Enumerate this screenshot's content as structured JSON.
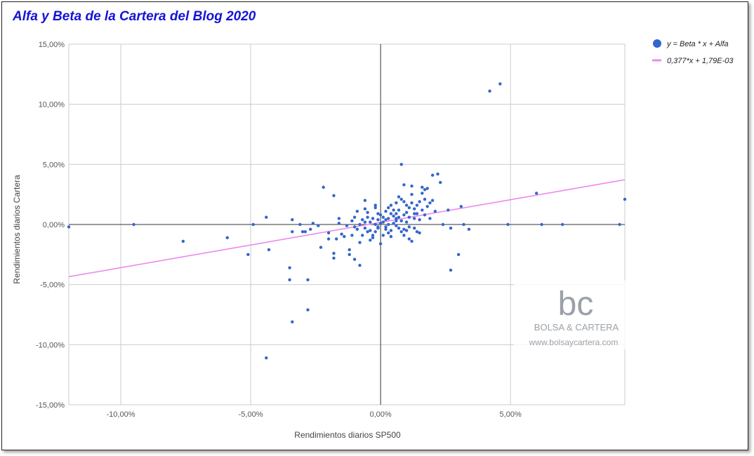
{
  "chart_data": {
    "type": "scatter",
    "title": "Alfa y Beta de la Cartera del Blog 2020",
    "xlabel": "Rendimientos diarios SP500",
    "ylabel": "Rendimientos diarios Cartera",
    "xlim": [
      -12.0,
      9.4
    ],
    "ylim": [
      -15.0,
      15.0
    ],
    "x_ticks": [
      {
        "value": -10,
        "label": "-10,00%"
      },
      {
        "value": -5,
        "label": "-5,00%"
      },
      {
        "value": 0,
        "label": "0,00%"
      },
      {
        "value": 5,
        "label": "5,00%"
      }
    ],
    "y_ticks": [
      {
        "value": 15,
        "label": "15,00%"
      },
      {
        "value": 10,
        "label": "10,00%"
      },
      {
        "value": 5,
        "label": "5,00%"
      },
      {
        "value": 0,
        "label": "0,00%"
      },
      {
        "value": -5,
        "label": "-5,00%"
      },
      {
        "value": -10,
        "label": "-10,00%"
      },
      {
        "value": -15,
        "label": "-15,00%"
      }
    ],
    "grid": true,
    "legend_position": "right",
    "series": [
      {
        "name": "y = Beta * x + Alfa",
        "kind": "scatter",
        "color": "#3366cc",
        "points": [
          [
            -12.0,
            -0.2
          ],
          [
            -9.5,
            0.0
          ],
          [
            -7.6,
            -1.4
          ],
          [
            -5.9,
            -1.1
          ],
          [
            -4.9,
            0.0
          ],
          [
            -5.1,
            -2.5
          ],
          [
            -4.4,
            0.6
          ],
          [
            -4.3,
            -2.1
          ],
          [
            -3.5,
            -3.6
          ],
          [
            -3.4,
            0.4
          ],
          [
            -3.5,
            -4.6
          ],
          [
            -3.4,
            -8.1
          ],
          [
            -4.4,
            -11.1
          ],
          [
            -2.8,
            -4.6
          ],
          [
            -2.8,
            -7.1
          ],
          [
            -3.0,
            -0.6
          ],
          [
            -2.9,
            -0.6
          ],
          [
            -2.7,
            -0.4
          ],
          [
            -3.1,
            0.0
          ],
          [
            -3.4,
            -0.6
          ],
          [
            -2.6,
            0.1
          ],
          [
            -2.4,
            -0.1
          ],
          [
            -2.3,
            -1.9
          ],
          [
            -2.2,
            3.1
          ],
          [
            -1.8,
            2.4
          ],
          [
            -2.0,
            -0.7
          ],
          [
            -1.8,
            -2.4
          ],
          [
            -1.7,
            -1.2
          ],
          [
            -1.6,
            0.1
          ],
          [
            -1.5,
            -0.8
          ],
          [
            -1.4,
            -1.0
          ],
          [
            -1.2,
            -2.1
          ],
          [
            -1.2,
            -2.5
          ],
          [
            -1.8,
            -2.8
          ],
          [
            -1.0,
            -2.9
          ],
          [
            -0.8,
            -3.4
          ],
          [
            -0.9,
            1.1
          ],
          [
            -0.6,
            2.0
          ],
          [
            -0.8,
            0.0
          ],
          [
            -1.1,
            0.3
          ],
          [
            -1.0,
            -0.2
          ],
          [
            -0.7,
            -0.9
          ],
          [
            -0.6,
            1.3
          ],
          [
            -0.5,
            1.0
          ],
          [
            -0.5,
            0.6
          ],
          [
            -0.4,
            -0.5
          ],
          [
            -0.3,
            -1.1
          ],
          [
            -0.2,
            1.6
          ],
          [
            -0.2,
            1.4
          ],
          [
            -0.1,
            -0.2
          ],
          [
            -0.1,
            0.4
          ],
          [
            0.0,
            -1.6
          ],
          [
            0.0,
            0.8
          ],
          [
            0.1,
            0.2
          ],
          [
            0.2,
            -0.2
          ],
          [
            0.2,
            1.1
          ],
          [
            0.3,
            0.5
          ],
          [
            0.3,
            0.0
          ],
          [
            0.4,
            1.6
          ],
          [
            0.4,
            -0.5
          ],
          [
            0.5,
            0.7
          ],
          [
            0.6,
            0.3
          ],
          [
            0.6,
            1.8
          ],
          [
            0.7,
            1.2
          ],
          [
            0.7,
            -0.3
          ],
          [
            0.8,
            5.0
          ],
          [
            0.8,
            2.1
          ],
          [
            0.9,
            3.3
          ],
          [
            0.9,
            0.8
          ],
          [
            1.0,
            0.2
          ],
          [
            1.0,
            1.6
          ],
          [
            1.1,
            -0.2
          ],
          [
            1.1,
            1.4
          ],
          [
            1.2,
            2.5
          ],
          [
            1.3,
            0.9
          ],
          [
            1.4,
            -0.6
          ],
          [
            1.5,
            1.9
          ],
          [
            1.6,
            2.6
          ],
          [
            1.7,
            2.9
          ],
          [
            1.8,
            3.0
          ],
          [
            1.9,
            0.5
          ],
          [
            2.0,
            4.1
          ],
          [
            2.2,
            4.2
          ],
          [
            2.3,
            3.5
          ],
          [
            2.1,
            1.1
          ],
          [
            1.2,
            -1.4
          ],
          [
            1.1,
            -1.2
          ],
          [
            0.9,
            -0.9
          ],
          [
            1.5,
            -0.7
          ],
          [
            1.3,
            0.5
          ],
          [
            1.6,
            1.2
          ],
          [
            1.7,
            0.8
          ],
          [
            2.4,
            0.0
          ],
          [
            2.7,
            -0.3
          ],
          [
            2.6,
            1.2
          ],
          [
            3.2,
            0.0
          ],
          [
            3.1,
            1.5
          ],
          [
            3.4,
            -0.4
          ],
          [
            3.0,
            -2.5
          ],
          [
            2.7,
            -3.8
          ],
          [
            4.2,
            11.1
          ],
          [
            4.6,
            11.7
          ],
          [
            4.9,
            0.0
          ],
          [
            6.0,
            2.6
          ],
          [
            6.2,
            0.0
          ],
          [
            7.0,
            0.0
          ],
          [
            9.2,
            0.0
          ],
          [
            9.4,
            2.1
          ],
          [
            -0.4,
            0.2
          ],
          [
            -0.3,
            0.5
          ],
          [
            0.1,
            0.6
          ],
          [
            0.2,
            0.4
          ],
          [
            0.5,
            0.1
          ],
          [
            0.6,
            -0.1
          ],
          [
            -0.6,
            0.2
          ],
          [
            -0.7,
            0.4
          ],
          [
            0.3,
            -0.7
          ],
          [
            0.4,
            0.9
          ],
          [
            0.7,
            0.6
          ],
          [
            0.8,
            0.3
          ],
          [
            -0.2,
            -0.6
          ],
          [
            -0.1,
            0.9
          ],
          [
            1.0,
            1.0
          ],
          [
            1.1,
            0.6
          ],
          [
            1.2,
            1.8
          ],
          [
            1.3,
            1.3
          ],
          [
            -1.0,
            0.6
          ],
          [
            -1.3,
            -0.1
          ],
          [
            -0.5,
            -0.6
          ],
          [
            0.0,
            0.1
          ],
          [
            0.5,
            1.2
          ],
          [
            0.9,
            1.9
          ],
          [
            1.4,
            1.6
          ],
          [
            1.5,
            0.4
          ],
          [
            1.8,
            1.5
          ],
          [
            2.0,
            2.0
          ],
          [
            -0.9,
            -0.4
          ],
          [
            -0.3,
            -0.9
          ],
          [
            0.6,
            0.9
          ],
          [
            0.7,
            2.3
          ],
          [
            1.6,
            3.1
          ],
          [
            1.9,
            1.8
          ],
          [
            -1.6,
            0.5
          ],
          [
            -2.0,
            -1.2
          ],
          [
            -0.8,
            -1.5
          ],
          [
            -0.4,
            -1.3
          ],
          [
            0.2,
            -0.4
          ],
          [
            0.4,
            -1.0
          ],
          [
            0.9,
            -0.4
          ],
          [
            1.2,
            3.2
          ],
          [
            -0.2,
            0.0
          ],
          [
            -0.1,
            -0.3
          ],
          [
            0.3,
            1.4
          ],
          [
            0.6,
            0.5
          ],
          [
            1.4,
            0.9
          ],
          [
            1.7,
            2.1
          ],
          [
            -1.1,
            -0.9
          ],
          [
            -0.6,
            -0.3
          ],
          [
            0.1,
            -0.9
          ],
          [
            0.8,
            -0.6
          ],
          [
            1.0,
            -0.5
          ],
          [
            1.3,
            -0.3
          ]
        ]
      },
      {
        "name": "0,377*x + 1,79E-03",
        "kind": "line",
        "color": "#ee88ee",
        "slope": 0.377,
        "intercept": 0.179
      }
    ]
  },
  "watermark": {
    "logo_letters": "bc",
    "brand": "BOLSA & CARTERA",
    "url": "www.bolsaycartera.com"
  }
}
